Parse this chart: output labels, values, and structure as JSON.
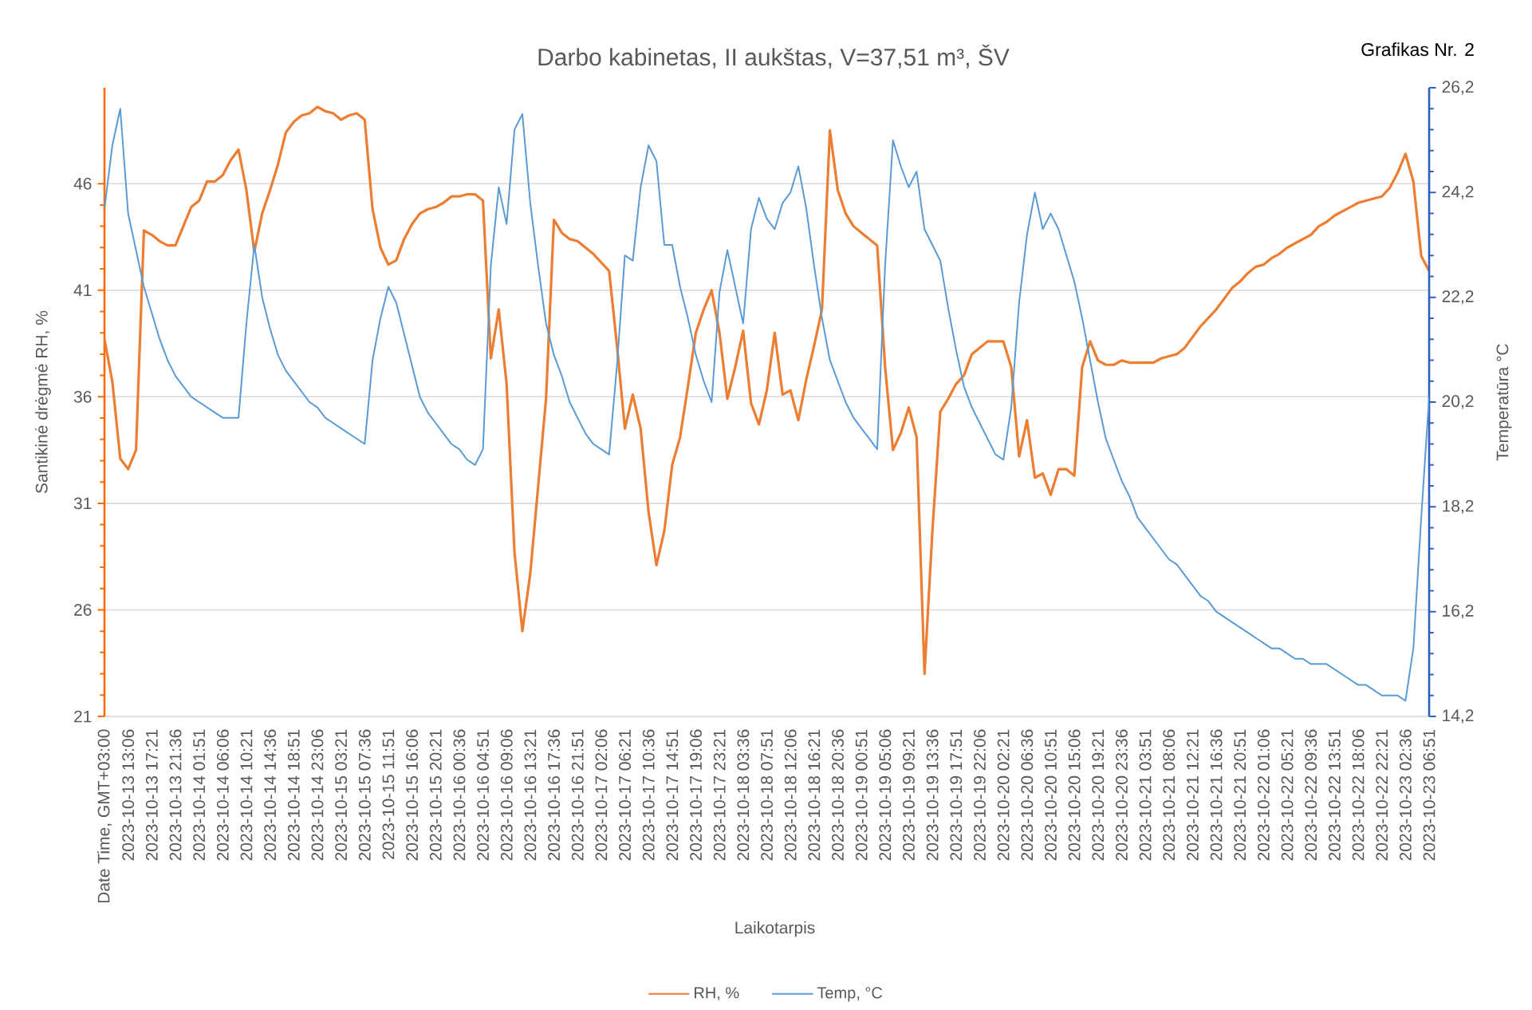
{
  "chart_data": {
    "type": "line",
    "title": "Darbo kabinetas, II aukštas, V=37,51 m³, ŠV",
    "xlabel": "Laikotarpis",
    "ylabel": "Santikinė drėgmė RH, %",
    "y2label": "Temperatūra °C",
    "annotations": [
      "Grafikas Nr. 2"
    ],
    "categories": [
      "Date Time, GMT+03:00",
      null,
      null,
      "2023-10-13 13:06",
      null,
      null,
      "2023-10-13 17:21",
      null,
      null,
      "2023-10-13 21:36",
      null,
      null,
      "2023-10-14 01:51",
      null,
      null,
      "2023-10-14 06:06",
      null,
      null,
      "2023-10-14 10:21",
      null,
      null,
      "2023-10-14 14:36",
      null,
      null,
      "2023-10-14 18:51",
      null,
      null,
      "2023-10-14 23:06",
      null,
      null,
      "2023-10-15 03:21",
      null,
      null,
      "2023-10-15 07:36",
      null,
      null,
      "2023-10-15 11:51",
      null,
      null,
      "2023-10-15 16:06",
      null,
      null,
      "2023-10-15 20:21",
      null,
      null,
      "2023-10-16 00:36",
      null,
      null,
      "2023-10-16 04:51",
      null,
      null,
      "2023-10-16 09:06",
      null,
      null,
      "2023-10-16 13:21",
      null,
      null,
      "2023-10-16 17:36",
      null,
      null,
      "2023-10-16 21:51",
      null,
      null,
      "2023-10-17 02:06",
      null,
      null,
      "2023-10-17 06:21",
      null,
      null,
      "2023-10-17 10:36",
      null,
      null,
      "2023-10-17 14:51",
      null,
      null,
      "2023-10-17 19:06",
      null,
      null,
      "2023-10-17 23:21",
      null,
      null,
      "2023-10-18 03:36",
      null,
      null,
      "2023-10-18 07:51",
      null,
      null,
      "2023-10-18 12:06",
      null,
      null,
      "2023-10-18 16:21",
      null,
      null,
      "2023-10-18 20:36",
      null,
      null,
      "2023-10-19 00:51",
      null,
      null,
      "2023-10-19 05:06",
      null,
      null,
      "2023-10-19 09:21",
      null,
      null,
      "2023-10-19 13:36",
      null,
      null,
      "2023-10-19 17:51",
      null,
      null,
      "2023-10-19 22:06",
      null,
      null,
      "2023-10-20 02:21",
      null,
      null,
      "2023-10-20 06:36",
      null,
      null,
      "2023-10-20 10:51",
      null,
      null,
      "2023-10-20 15:06",
      null,
      null,
      "2023-10-20 19:21",
      null,
      null,
      "2023-10-20 23:36",
      null,
      null,
      "2023-10-21 03:51",
      null,
      null,
      "2023-10-21 08:06",
      null,
      null,
      "2023-10-21 12:21",
      null,
      null,
      "2023-10-21 16:36",
      null,
      null,
      "2023-10-21 20:51",
      null,
      null,
      "2023-10-22 01:06",
      null,
      null,
      "2023-10-22 05:21",
      null,
      null,
      "2023-10-22 09:36",
      null,
      null,
      "2023-10-22 13:51",
      null,
      null,
      "2023-10-22 18:06",
      null,
      null,
      "2023-10-22 22:21",
      null,
      null,
      "2023-10-23 02:36",
      null,
      null,
      "2023-10-23 06:51"
    ],
    "series": [
      {
        "name": "RH, %",
        "color": "#ED7D31",
        "values": [
          38.7,
          36.7,
          33.1,
          32.6,
          33.5,
          43.8,
          43.6,
          43.3,
          43.1,
          43.1,
          44.0,
          44.9,
          45.2,
          46.1,
          46.1,
          46.4,
          47.1,
          47.6,
          45.7,
          42.8,
          44.6,
          45.7,
          46.9,
          48.4,
          48.9,
          49.2,
          49.3,
          49.6,
          49.4,
          49.3,
          49.0,
          49.2,
          49.3,
          49.0,
          44.8,
          43.0,
          42.2,
          42.4,
          43.4,
          44.1,
          44.6,
          44.8,
          44.9,
          45.1,
          45.4,
          45.4,
          45.5,
          45.5,
          45.2,
          37.8,
          40.1,
          36.6,
          28.7,
          25.0,
          27.7,
          31.8,
          35.9,
          44.3,
          43.7,
          43.4,
          43.3,
          43.0,
          42.7,
          42.3,
          41.9,
          38.4,
          34.5,
          36.1,
          34.5,
          30.6,
          28.1,
          29.7,
          32.8,
          34.1,
          36.5,
          39.0,
          40.1,
          41.0,
          39.0,
          35.9,
          37.4,
          39.1,
          35.7,
          34.7,
          36.3,
          39.0,
          36.1,
          36.3,
          34.9,
          36.8,
          38.4,
          40.1,
          48.5,
          45.7,
          44.6,
          44.0,
          43.7,
          43.4,
          43.1,
          37.4,
          33.5,
          34.3,
          35.5,
          34.1,
          23.0,
          29.7,
          35.3,
          35.9,
          36.6,
          37.0,
          38.0,
          38.3,
          38.6,
          38.6,
          38.6,
          37.4,
          33.2,
          34.9,
          32.2,
          32.4,
          31.4,
          32.6,
          32.6,
          32.3,
          37.4,
          38.6,
          37.7,
          37.5,
          37.5,
          37.7,
          37.6,
          37.6,
          37.6,
          37.6,
          37.8,
          37.9,
          38.0,
          38.3,
          38.8,
          39.3,
          39.7,
          40.1,
          40.6,
          41.1,
          41.4,
          41.8,
          42.1,
          42.2,
          42.5,
          42.7,
          43.0,
          43.2,
          43.4,
          43.6,
          44.0,
          44.2,
          44.5,
          44.7,
          44.9,
          45.1,
          45.2,
          45.3,
          45.4,
          45.8,
          46.5,
          47.4,
          46.1,
          42.6,
          41.9
        ]
      },
      {
        "name": "Temp, °C",
        "color": "#5B9BD5",
        "axis": "y2",
        "values": [
          23.9,
          25.1,
          25.8,
          23.8,
          23.1,
          22.4,
          21.9,
          21.4,
          21.0,
          20.7,
          20.5,
          20.3,
          20.2,
          20.1,
          20.0,
          19.9,
          19.9,
          19.9,
          21.7,
          23.2,
          22.2,
          21.6,
          21.1,
          20.8,
          20.6,
          20.4,
          20.2,
          20.1,
          19.9,
          19.8,
          19.7,
          19.6,
          19.5,
          19.4,
          21.0,
          21.8,
          22.4,
          22.1,
          21.5,
          20.9,
          20.3,
          20.0,
          19.8,
          19.6,
          19.4,
          19.3,
          19.1,
          19.0,
          19.3,
          22.8,
          24.3,
          23.6,
          25.4,
          25.7,
          24.0,
          22.8,
          21.7,
          21.1,
          20.7,
          20.2,
          19.9,
          19.6,
          19.4,
          19.3,
          19.2,
          20.9,
          23.0,
          22.9,
          24.3,
          25.1,
          24.8,
          23.2,
          23.2,
          22.4,
          21.8,
          21.1,
          20.6,
          20.2,
          22.3,
          23.1,
          22.4,
          21.7,
          23.5,
          24.1,
          23.7,
          23.5,
          24.0,
          24.2,
          24.7,
          23.9,
          22.8,
          21.8,
          21.0,
          20.6,
          20.2,
          19.9,
          19.7,
          19.5,
          19.3,
          22.8,
          25.2,
          24.7,
          24.3,
          24.6,
          23.5,
          23.2,
          22.9,
          22.0,
          21.2,
          20.5,
          20.1,
          19.8,
          19.5,
          19.2,
          19.1,
          20.1,
          22.1,
          23.4,
          24.2,
          23.5,
          23.8,
          23.5,
          23.0,
          22.5,
          21.8,
          21.0,
          20.2,
          19.5,
          19.1,
          18.7,
          18.4,
          18.0,
          17.8,
          17.6,
          17.4,
          17.2,
          17.1,
          16.9,
          16.7,
          16.5,
          16.4,
          16.2,
          16.1,
          16.0,
          15.9,
          15.8,
          15.7,
          15.6,
          15.5,
          15.5,
          15.4,
          15.3,
          15.3,
          15.2,
          15.2,
          15.2,
          15.1,
          15.0,
          14.9,
          14.8,
          14.8,
          14.7,
          14.6,
          14.6,
          14.6,
          14.5,
          15.5,
          18.0,
          20.3
        ]
      }
    ],
    "ylim": [
      21,
      50.5
    ],
    "yticks": [
      21,
      26,
      31,
      36,
      41,
      46
    ],
    "y2lim": [
      14.2,
      26.2
    ],
    "y2ticks": [
      {
        "value": 14.2,
        "label": "14,2"
      },
      {
        "value": 16.2,
        "label": "16,2"
      },
      {
        "value": 18.2,
        "label": "18,2"
      },
      {
        "value": 20.2,
        "label": "20,2"
      },
      {
        "value": 22.2,
        "label": "22,2"
      },
      {
        "value": 24.2,
        "label": "24,2"
      },
      {
        "value": 26.2,
        "label": "26,2"
      }
    ],
    "grid": "y",
    "legend": "bottom"
  }
}
